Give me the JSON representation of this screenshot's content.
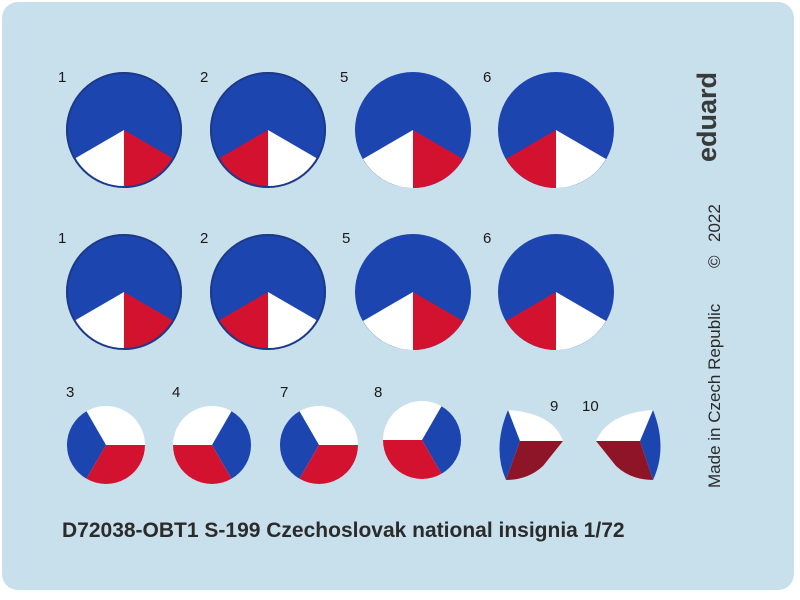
{
  "brand": "eduard",
  "made_in": "Made in Czech Republic",
  "copyright_symbol": "©",
  "year": "2022",
  "title": "D72038-OBT1 S-199 Czechoslovak national insignia 1/72",
  "colors": {
    "background": "#c8dfec",
    "blue": "#1d45b0",
    "red": "#d3122f",
    "white": "#ffffff",
    "dark_red": "#8e1428",
    "outline": "#1d3a8a"
  },
  "insignia": [
    {
      "id": "1",
      "label": "1",
      "variant": "large-outlined"
    },
    {
      "id": "2",
      "label": "2",
      "variant": "large-outlined"
    },
    {
      "id": "5",
      "label": "5",
      "variant": "large-plain"
    },
    {
      "id": "6",
      "label": "6",
      "variant": "large-plain"
    },
    {
      "id": "1b",
      "label": "1",
      "variant": "large-outlined"
    },
    {
      "id": "2b",
      "label": "2",
      "variant": "large-outlined"
    },
    {
      "id": "5b",
      "label": "5",
      "variant": "large-plain"
    },
    {
      "id": "6b",
      "label": "6",
      "variant": "large-plain"
    },
    {
      "id": "3",
      "label": "3",
      "variant": "small-blue-left"
    },
    {
      "id": "4",
      "label": "4",
      "variant": "small-blue-right"
    },
    {
      "id": "7",
      "label": "7",
      "variant": "small-blue-left"
    },
    {
      "id": "8",
      "label": "8",
      "variant": "small-blue-right"
    },
    {
      "id": "9",
      "label": "9",
      "variant": "lens-blue-left"
    },
    {
      "id": "10",
      "label": "10",
      "variant": "lens-blue-right"
    }
  ]
}
